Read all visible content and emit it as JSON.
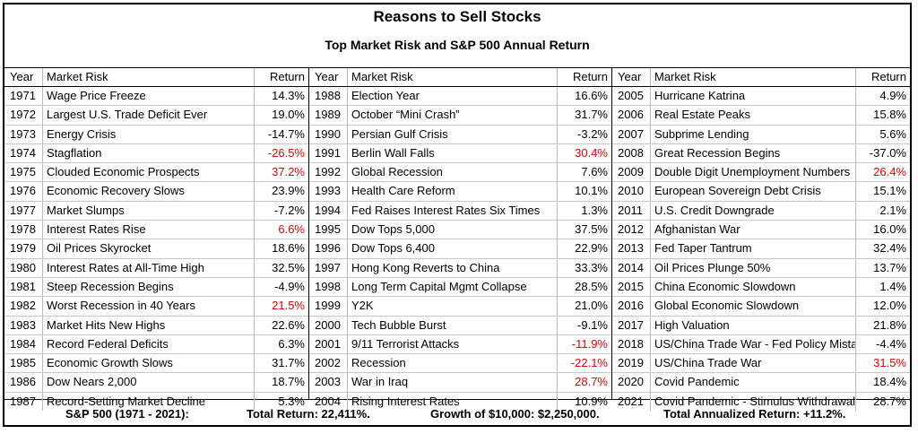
{
  "title": "Reasons to Sell Stocks",
  "subtitle": "Top Market Risk and S&P 500 Annual Return",
  "headers": {
    "year": "Year",
    "risk": "Market Risk",
    "ret": "Return"
  },
  "columns": [
    [
      {
        "year": "1971",
        "risk": "Wage Price Freeze",
        "ret": "14.3%",
        "red": false
      },
      {
        "year": "1972",
        "risk": "Largest U.S. Trade Deficit Ever",
        "ret": "19.0%",
        "red": false
      },
      {
        "year": "1973",
        "risk": "Energy Crisis",
        "ret": "-14.7%",
        "red": false
      },
      {
        "year": "1974",
        "risk": "Stagflation",
        "ret": "-26.5%",
        "red": true
      },
      {
        "year": "1975",
        "risk": "Clouded Economic Prospects",
        "ret": "37.2%",
        "red": true
      },
      {
        "year": "1976",
        "risk": "Economic Recovery Slows",
        "ret": "23.9%",
        "red": false
      },
      {
        "year": "1977",
        "risk": "Market Slumps",
        "ret": "-7.2%",
        "red": false
      },
      {
        "year": "1978",
        "risk": "Interest Rates Rise",
        "ret": "6.6%",
        "red": true
      },
      {
        "year": "1979",
        "risk": "Oil Prices Skyrocket",
        "ret": "18.6%",
        "red": false
      },
      {
        "year": "1980",
        "risk": "Interest Rates at All-Time High",
        "ret": "32.5%",
        "red": false
      },
      {
        "year": "1981",
        "risk": "Steep Recession Begins",
        "ret": "-4.9%",
        "red": false
      },
      {
        "year": "1982",
        "risk": "Worst Recession in 40 Years",
        "ret": "21.5%",
        "red": true
      },
      {
        "year": "1983",
        "risk": "Market Hits New Highs",
        "ret": "22.6%",
        "red": false
      },
      {
        "year": "1984",
        "risk": "Record Federal Deficits",
        "ret": "6.3%",
        "red": false
      },
      {
        "year": "1985",
        "risk": "Economic Growth Slows",
        "ret": "31.7%",
        "red": false
      },
      {
        "year": "1986",
        "risk": "Dow Nears 2,000",
        "ret": "18.7%",
        "red": false
      },
      {
        "year": "1987",
        "risk": "Record-Setting Market Decline",
        "ret": "5.3%",
        "red": false
      }
    ],
    [
      {
        "year": "1988",
        "risk": "Election Year",
        "ret": "16.6%",
        "red": false
      },
      {
        "year": "1989",
        "risk": "October “Mini Crash”",
        "ret": "31.7%",
        "red": false
      },
      {
        "year": "1990",
        "risk": "Persian Gulf Crisis",
        "ret": "-3.2%",
        "red": false
      },
      {
        "year": "1991",
        "risk": "Berlin Wall Falls",
        "ret": "30.4%",
        "red": true
      },
      {
        "year": "1992",
        "risk": "Global Recession",
        "ret": "7.6%",
        "red": false
      },
      {
        "year": "1993",
        "risk": "Health Care Reform",
        "ret": "10.1%",
        "red": false
      },
      {
        "year": "1994",
        "risk": "Fed Raises Interest Rates Six Times",
        "ret": "1.3%",
        "red": false
      },
      {
        "year": "1995",
        "risk": "Dow Tops 5,000",
        "ret": "37.5%",
        "red": false
      },
      {
        "year": "1996",
        "risk": "Dow Tops 6,400",
        "ret": "22.9%",
        "red": false
      },
      {
        "year": "1997",
        "risk": "Hong Kong Reverts to China",
        "ret": "33.3%",
        "red": false
      },
      {
        "year": "1998",
        "risk": "Long Term Capital Mgmt Collapse",
        "ret": "28.5%",
        "red": false
      },
      {
        "year": "1999",
        "risk": "Y2K",
        "ret": "21.0%",
        "red": false
      },
      {
        "year": "2000",
        "risk": "Tech Bubble Burst",
        "ret": "-9.1%",
        "red": false
      },
      {
        "year": "2001",
        "risk": "9/11 Terrorist Attacks",
        "ret": "-11.9%",
        "red": true
      },
      {
        "year": "2002",
        "risk": "Recession",
        "ret": "-22.1%",
        "red": true
      },
      {
        "year": "2003",
        "risk": "War in Iraq",
        "ret": "28.7%",
        "red": true
      },
      {
        "year": "2004",
        "risk": "Rising Interest Rates",
        "ret": "10.9%",
        "red": false
      }
    ],
    [
      {
        "year": "2005",
        "risk": "Hurricane Katrina",
        "ret": "4.9%",
        "red": false
      },
      {
        "year": "2006",
        "risk": "Real Estate Peaks",
        "ret": "15.8%",
        "red": false
      },
      {
        "year": "2007",
        "risk": "Subprime Lending",
        "ret": "5.6%",
        "red": false
      },
      {
        "year": "2008",
        "risk": "Great Recession Begins",
        "ret": "-37.0%",
        "red": false
      },
      {
        "year": "2009",
        "risk": "Double Digit Unemployment Numbers",
        "ret": "26.4%",
        "red": true
      },
      {
        "year": "2010",
        "risk": "European Sovereign Debt Crisis",
        "ret": "15.1%",
        "red": false
      },
      {
        "year": "2011",
        "risk": "U.S. Credit Downgrade",
        "ret": "2.1%",
        "red": false
      },
      {
        "year": "2012",
        "risk": "Afghanistan War",
        "ret": "16.0%",
        "red": false
      },
      {
        "year": "2013",
        "risk": "Fed Taper Tantrum",
        "ret": "32.4%",
        "red": false
      },
      {
        "year": "2014",
        "risk": "Oil Prices Plunge 50%",
        "ret": "13.7%",
        "red": false
      },
      {
        "year": "2015",
        "risk": "China Economic Slowdown",
        "ret": "1.4%",
        "red": false
      },
      {
        "year": "2016",
        "risk": "Global Economic Slowdown",
        "ret": "12.0%",
        "red": false
      },
      {
        "year": "2017",
        "risk": "High Valuation",
        "ret": "21.8%",
        "red": false
      },
      {
        "year": "2018",
        "risk": "US/China Trade War - Fed Policy Mistake",
        "ret": "-4.4%",
        "red": false
      },
      {
        "year": "2019",
        "risk": "US/China Trade War",
        "ret": "31.5%",
        "red": true
      },
      {
        "year": "2020",
        "risk": "Covid Pandemic",
        "ret": "18.4%",
        "red": false
      },
      {
        "year": "2021",
        "risk": "Covid Pandemic - Stimulus Withdrawal",
        "ret": "28.7%",
        "red": false
      }
    ]
  ],
  "footer": {
    "period": "S&P 500 (1971 - 2021):",
    "total_return": "Total Return: 22,411%.",
    "growth": "Growth of $10,000: $2,250,000.",
    "annualized": "Total Annualized Return: +11.2%."
  },
  "colors": {
    "highlight": "#e00000"
  }
}
